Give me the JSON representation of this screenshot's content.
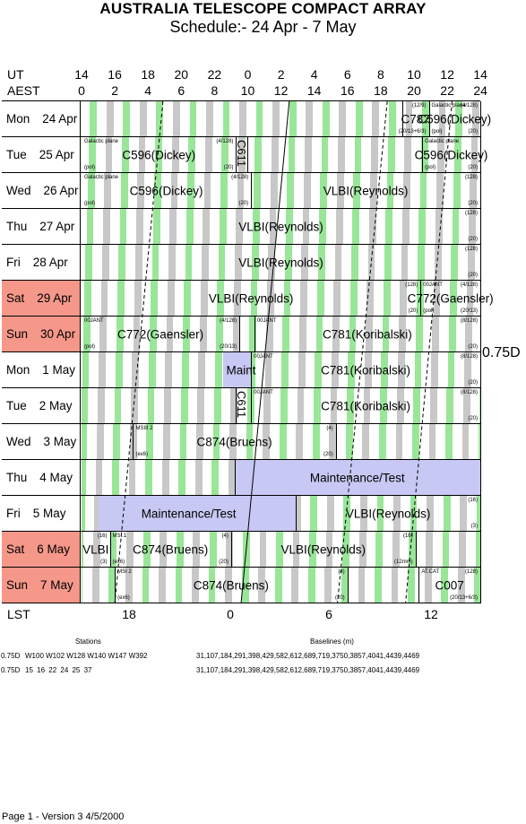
{
  "title": "AUSTRALIA TELESCOPE COMPACT ARRAY",
  "subtitle": "Schedule:- 24 Apr - 7  May",
  "header": {
    "ut_label": "UT",
    "aest_label": "AEST",
    "ut_hours": [
      "14",
      "16",
      "18",
      "20",
      "22",
      "0",
      "2",
      "4",
      "6",
      "8",
      "10",
      "12",
      "14"
    ],
    "aest_hours": [
      "0",
      "2",
      "4",
      "6",
      "8",
      "10",
      "12",
      "14",
      "16",
      "18",
      "20",
      "22",
      "24"
    ]
  },
  "days": [
    {
      "dow": "Mon",
      "date": "24 Apr",
      "weekend": false
    },
    {
      "dow": "Tue",
      "date": "25 Apr",
      "weekend": false
    },
    {
      "dow": "Wed",
      "date": "26 Apr",
      "weekend": false
    },
    {
      "dow": "Thu",
      "date": "27 Apr",
      "weekend": false
    },
    {
      "dow": "Fri",
      "date": "28 Apr",
      "weekend": false
    },
    {
      "dow": "Sat",
      "date": "29 Apr",
      "weekend": true
    },
    {
      "dow": "Sun",
      "date": "30 Apr",
      "weekend": true
    },
    {
      "dow": "Mon",
      "date": "1  May",
      "weekend": false
    },
    {
      "dow": "Tue",
      "date": "2  May",
      "weekend": false
    },
    {
      "dow": "Wed",
      "date": "3  May",
      "weekend": false
    },
    {
      "dow": "Thu",
      "date": "4  May",
      "weekend": false
    },
    {
      "dow": "Fri",
      "date": "5  May",
      "weekend": false
    },
    {
      "dow": "Sat",
      "date": "6  May",
      "weekend": true
    },
    {
      "dow": "Sun",
      "date": "7  May",
      "weekend": true
    }
  ],
  "blocks": [
    {
      "day": 0,
      "start": 0,
      "end": 19.3,
      "label": ""
    },
    {
      "day": 0,
      "start": 19.3,
      "end": 20.9,
      "label": "C787",
      "notes": {
        "tr": "(12/9)",
        "br": "(20/13+6/3)"
      }
    },
    {
      "day": 0,
      "start": 20.9,
      "end": 24,
      "label": "C596(Dickey)",
      "notes": {
        "tl": "Galactic plane",
        "tr": "(4/128)",
        "bl": "(pol)",
        "br": "(20)"
      }
    },
    {
      "day": 1,
      "start": 0,
      "end": 9.3,
      "label": "C596(Dickey)",
      "notes": {
        "tl": "Galactic plane",
        "tr": "(4/128)",
        "bl": "(pol)",
        "br": "(20)"
      }
    },
    {
      "day": 1,
      "start": 9.3,
      "end": 10,
      "label": "",
      "vert": "C611"
    },
    {
      "day": 1,
      "start": 10,
      "end": 20.5,
      "label": ""
    },
    {
      "day": 1,
      "start": 20.5,
      "end": 24,
      "label": "C596(Dickey)",
      "notes": {
        "tl": "Galactic plane",
        "bl": "(pol)",
        "br": "(20)"
      }
    },
    {
      "day": 2,
      "start": 0,
      "end": 10.2,
      "label": "C596(Dickey)",
      "notes": {
        "tl": "Galactic plane",
        "tr": "(4/128)",
        "bl": "(pol)",
        "br": "(20)"
      }
    },
    {
      "day": 2,
      "start": 10.2,
      "end": 24,
      "label": "VLBI(Reynolds)",
      "notes": {
        "tr": "(128)",
        "br": "(20)"
      }
    },
    {
      "day": 3,
      "start": 0,
      "end": 24,
      "label": "VLBI(Reynolds)",
      "notes": {
        "tr": "(128)",
        "br": "(20)"
      }
    },
    {
      "day": 4,
      "start": 0,
      "end": 24,
      "label": "VLBI(Reynolds)",
      "notes": {
        "tr": "(128)",
        "br": "(20)"
      }
    },
    {
      "day": 5,
      "start": 0,
      "end": 20.4,
      "label": "VLBI(Reynolds)",
      "notes": {
        "tr": "(128)",
        "br": "(20)"
      }
    },
    {
      "day": 5,
      "start": 20.4,
      "end": 24,
      "label": "C772(Gaensler)",
      "notes": {
        "tl": "00JANT",
        "tr": "(4/128)",
        "bl": "(pol)",
        "br": "(20/13)"
      }
    },
    {
      "day": 6,
      "start": 0,
      "end": 9.5,
      "label": "C772(Gaensler)",
      "notes": {
        "tl": "00JANT",
        "tr": "(4/128)",
        "bl": "(pol)",
        "br": "(20/13)"
      }
    },
    {
      "day": 6,
      "start": 9.5,
      "end": 10.4,
      "label": ""
    },
    {
      "day": 6,
      "start": 10.4,
      "end": 24,
      "label": "C781(Koribalski)",
      "notes": {
        "tl": "00JANT",
        "tr": "(8/128)",
        "br": "(20)"
      }
    },
    {
      "day": 7,
      "start": 0,
      "end": 10.2,
      "label": "Maint",
      "labelpos": 9.6
    },
    {
      "day": 7,
      "start": 10.2,
      "end": 24,
      "label": "C781(Koribalski)",
      "notes": {
        "tl": "00JANT",
        "tr": "(8/128)",
        "br": "(20)"
      }
    },
    {
      "day": 8,
      "start": 0,
      "end": 9.3,
      "label": ""
    },
    {
      "day": 8,
      "start": 9.3,
      "end": 10.2,
      "label": "",
      "vert": "C611"
    },
    {
      "day": 8,
      "start": 10.2,
      "end": 24,
      "label": "C781(Koribalski)",
      "notes": {
        "tl": "00JANT",
        "tr": "(8/128)",
        "br": "(20)"
      }
    },
    {
      "day": 9,
      "start": 0,
      "end": 3.1,
      "label": ""
    },
    {
      "day": 9,
      "start": 3.1,
      "end": 15.3,
      "label": "C874(Bruens)",
      "notes": {
        "tl": "MSIII 2",
        "tr": "(4)",
        "bl": "(ex6)",
        "br": "(20)"
      }
    },
    {
      "day": 9,
      "start": 15.3,
      "end": 24,
      "label": ""
    },
    {
      "day": 10,
      "start": 0,
      "end": 9.2,
      "label": ""
    },
    {
      "day": 10,
      "start": 9.2,
      "end": 24,
      "label": "Maintenance/Test"
    },
    {
      "day": 11,
      "start": 0,
      "end": 12.9,
      "label": "Maintenance/Test"
    },
    {
      "day": 11,
      "start": 12.9,
      "end": 24,
      "label": "VLBI(Reynolds)",
      "notes": {
        "tr": "(16)",
        "br": "(3)"
      }
    },
    {
      "day": 12,
      "start": 0,
      "end": 1.7,
      "label": "VLBI",
      "notes": {
        "tr": "(16)",
        "br": "(3)"
      }
    },
    {
      "day": 12,
      "start": 1.7,
      "end": 9.0,
      "label": "C874(Bruens)",
      "notes": {
        "tl": "MSI.1",
        "tr": "(4)",
        "bl": "(ex6)",
        "br": "(20)"
      }
    },
    {
      "day": 12,
      "start": 9.0,
      "end": 20.1,
      "label": "VLBI(Reynolds)",
      "notes": {
        "tr": "(16)",
        "br": "(12mm)"
      }
    },
    {
      "day": 12,
      "start": 20.1,
      "end": 24,
      "label": ""
    },
    {
      "day": 13,
      "start": 0,
      "end": 2.0,
      "label": ""
    },
    {
      "day": 13,
      "start": 2.0,
      "end": 16.0,
      "label": "C874(Bruens)",
      "notes": {
        "tl": "MSI 2",
        "tr": "(4)",
        "bl": "(ex6)",
        "br": "(20)"
      }
    },
    {
      "day": 13,
      "start": 16.0,
      "end": 20.3,
      "label": ""
    },
    {
      "day": 13,
      "start": 20.3,
      "end": 24,
      "label": "C007",
      "notes": {
        "tl": "AT.CAT",
        "tr": "(128)",
        "br": "(20/13+6/3)"
      }
    }
  ],
  "config_label": "0.75D",
  "lst": {
    "label": "LST",
    "ticks": [
      "18",
      "0",
      "6",
      "12"
    ]
  },
  "footer": {
    "stations_header": "Stations",
    "baselines_header": "Baselines (m)",
    "rows": [
      {
        "config": "0.75D",
        "stations": "W100 W102 W128 W140 W147 W392",
        "baselines": "31,107,184,291,398,429,582,612,689,719,3750,3857,4041,4439,4469"
      },
      {
        "config": "0.75D",
        "stations": "15  16  22  24  25  37",
        "baselines": "31,107,184,291,398,429,582,612,689,719,3750,3857,4041,4439,4469"
      }
    ],
    "page_info": "Page 1 - Version 3  4/5/2000"
  },
  "colors": {
    "green": "#99e699",
    "grey": "#c8c8c8",
    "lavender": "#c8c8f5",
    "weekend": "#f5988a"
  }
}
